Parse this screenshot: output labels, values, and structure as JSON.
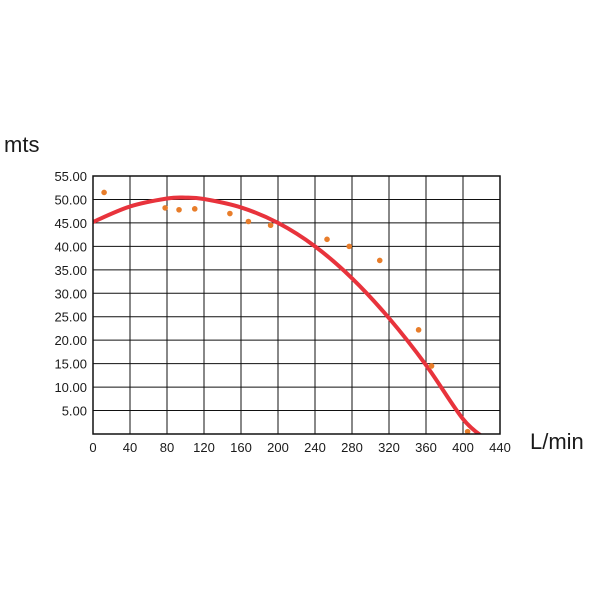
{
  "chart_data": {
    "type": "scatter",
    "ylabel": "mts",
    "xlabel": "L/min",
    "xlim": [
      0,
      440
    ],
    "ylim": [
      0,
      55
    ],
    "x_ticks": [
      0,
      40,
      80,
      120,
      160,
      200,
      240,
      280,
      320,
      360,
      400,
      440
    ],
    "x_tick_labels": [
      "0",
      "40",
      "80",
      "120",
      "160",
      "200",
      "240",
      "280",
      "320",
      "360",
      "400",
      "440"
    ],
    "y_ticks": [
      5,
      10,
      15,
      20,
      25,
      30,
      35,
      40,
      45,
      50,
      55
    ],
    "y_tick_labels": [
      "5.00",
      "10.00",
      "15.00",
      "20.00",
      "25.00",
      "30.00",
      "35.00",
      "40.00",
      "45.00",
      "50.00",
      "55.00"
    ],
    "grid": true,
    "series": [
      {
        "kind": "points",
        "color": "#e87d2a",
        "x": [
          12,
          78,
          93,
          110,
          148,
          168,
          192,
          253,
          277,
          310,
          352,
          366,
          405
        ],
        "y": [
          51.5,
          48.2,
          47.8,
          48.0,
          47.0,
          45.3,
          44.5,
          41.5,
          40.0,
          37.0,
          22.2,
          14.5,
          0.5
        ]
      },
      {
        "kind": "fit-curve",
        "color": "#e8333c",
        "x": [
          0,
          40,
          80,
          100,
          120,
          160,
          200,
          240,
          280,
          320,
          360,
          400,
          424
        ],
        "y": [
          45.2,
          48.5,
          50.2,
          50.4,
          50.1,
          48.3,
          45.0,
          40.0,
          33.2,
          24.7,
          14.7,
          3.2,
          -1.0
        ]
      }
    ]
  }
}
